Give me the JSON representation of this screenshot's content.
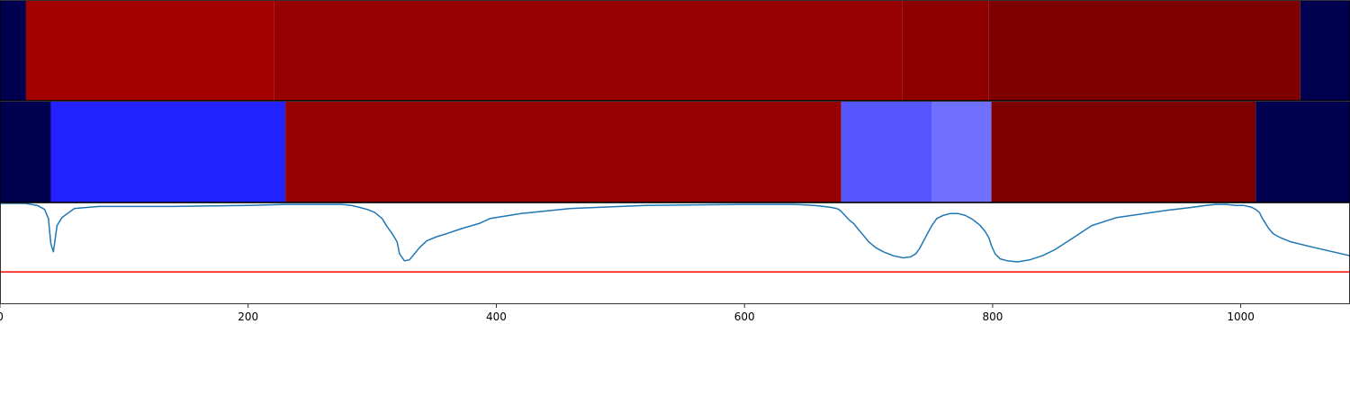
{
  "chart_data": [
    {
      "type": "heatmap",
      "panel": "top-segment-strip",
      "x_range": [
        0,
        1088
      ],
      "segments": [
        {
          "start": 0,
          "end": 21,
          "color": "#000050"
        },
        {
          "start": 21,
          "end": 221,
          "color": "#a30000"
        },
        {
          "start": 221,
          "end": 727,
          "color": "#970000"
        },
        {
          "start": 727,
          "end": 797,
          "color": "#8e0000"
        },
        {
          "start": 797,
          "end": 1048,
          "color": "#7f0000"
        },
        {
          "start": 1048,
          "end": 1088,
          "color": "#000050"
        }
      ]
    },
    {
      "type": "heatmap",
      "panel": "middle-segment-strip",
      "x_range": [
        0,
        1088
      ],
      "segments": [
        {
          "start": 0,
          "end": 41,
          "color": "#000050"
        },
        {
          "start": 41,
          "end": 230,
          "color": "#2222ff"
        },
        {
          "start": 230,
          "end": 678,
          "color": "#970000"
        },
        {
          "start": 678,
          "end": 751,
          "color": "#5656ff"
        },
        {
          "start": 751,
          "end": 799,
          "color": "#7070ff"
        },
        {
          "start": 799,
          "end": 1012,
          "color": "#7f0000"
        },
        {
          "start": 1012,
          "end": 1088,
          "color": "#000050"
        }
      ]
    },
    {
      "type": "line",
      "panel": "bottom-line-plot",
      "xlim": [
        0,
        1088
      ],
      "ylim": [
        0,
        1
      ],
      "threshold": 0.32,
      "threshold_color": "#ff0000",
      "series": [
        {
          "color": "#1f77b4",
          "x": [
            0,
            20,
            30,
            36,
            39,
            41,
            43,
            46,
            50,
            60,
            80,
            100,
            140,
            200,
            230,
            260,
            275,
            283,
            290,
            296,
            302,
            308,
            312,
            316,
            320,
            322,
            326,
            330,
            334,
            338,
            344,
            352,
            360,
            372,
            386,
            395,
            420,
            460,
            520,
            600,
            640,
            656,
            664,
            670,
            674,
            676,
            678,
            681,
            684,
            688,
            692,
            696,
            700,
            706,
            712,
            720,
            728,
            734,
            738,
            741,
            744,
            747,
            751,
            755,
            760,
            766,
            772,
            778,
            784,
            790,
            794,
            797,
            799,
            802,
            806,
            812,
            820,
            830,
            840,
            850,
            860,
            870,
            880,
            900,
            940,
            960,
            972,
            980,
            988,
            996,
            1002,
            1006,
            1009,
            1012,
            1015,
            1017,
            1019,
            1022,
            1026,
            1032,
            1040,
            1060,
            1088
          ],
          "y": [
            1.0,
            1.0,
            0.98,
            0.94,
            0.85,
            0.6,
            0.52,
            0.78,
            0.86,
            0.95,
            0.97,
            0.97,
            0.97,
            0.98,
            0.99,
            0.99,
            0.99,
            0.98,
            0.96,
            0.94,
            0.91,
            0.85,
            0.77,
            0.7,
            0.62,
            0.5,
            0.43,
            0.44,
            0.5,
            0.56,
            0.63,
            0.67,
            0.7,
            0.75,
            0.8,
            0.85,
            0.9,
            0.95,
            0.98,
            0.99,
            0.99,
            0.98,
            0.97,
            0.96,
            0.95,
            0.94,
            0.92,
            0.88,
            0.84,
            0.8,
            0.74,
            0.68,
            0.62,
            0.56,
            0.52,
            0.48,
            0.46,
            0.47,
            0.5,
            0.55,
            0.62,
            0.69,
            0.78,
            0.85,
            0.88,
            0.9,
            0.9,
            0.88,
            0.84,
            0.78,
            0.72,
            0.66,
            0.58,
            0.5,
            0.45,
            0.43,
            0.42,
            0.44,
            0.48,
            0.54,
            0.62,
            0.7,
            0.78,
            0.86,
            0.93,
            0.96,
            0.98,
            0.99,
            0.99,
            0.98,
            0.98,
            0.97,
            0.96,
            0.94,
            0.91,
            0.86,
            0.82,
            0.76,
            0.7,
            0.66,
            0.62,
            0.56,
            0.48
          ]
        }
      ]
    }
  ],
  "x_axis": {
    "ticks": [
      0,
      200,
      400,
      600,
      800,
      1000
    ],
    "tick_labels": [
      "0",
      "200",
      "400",
      "600",
      "800",
      "1000"
    ]
  }
}
